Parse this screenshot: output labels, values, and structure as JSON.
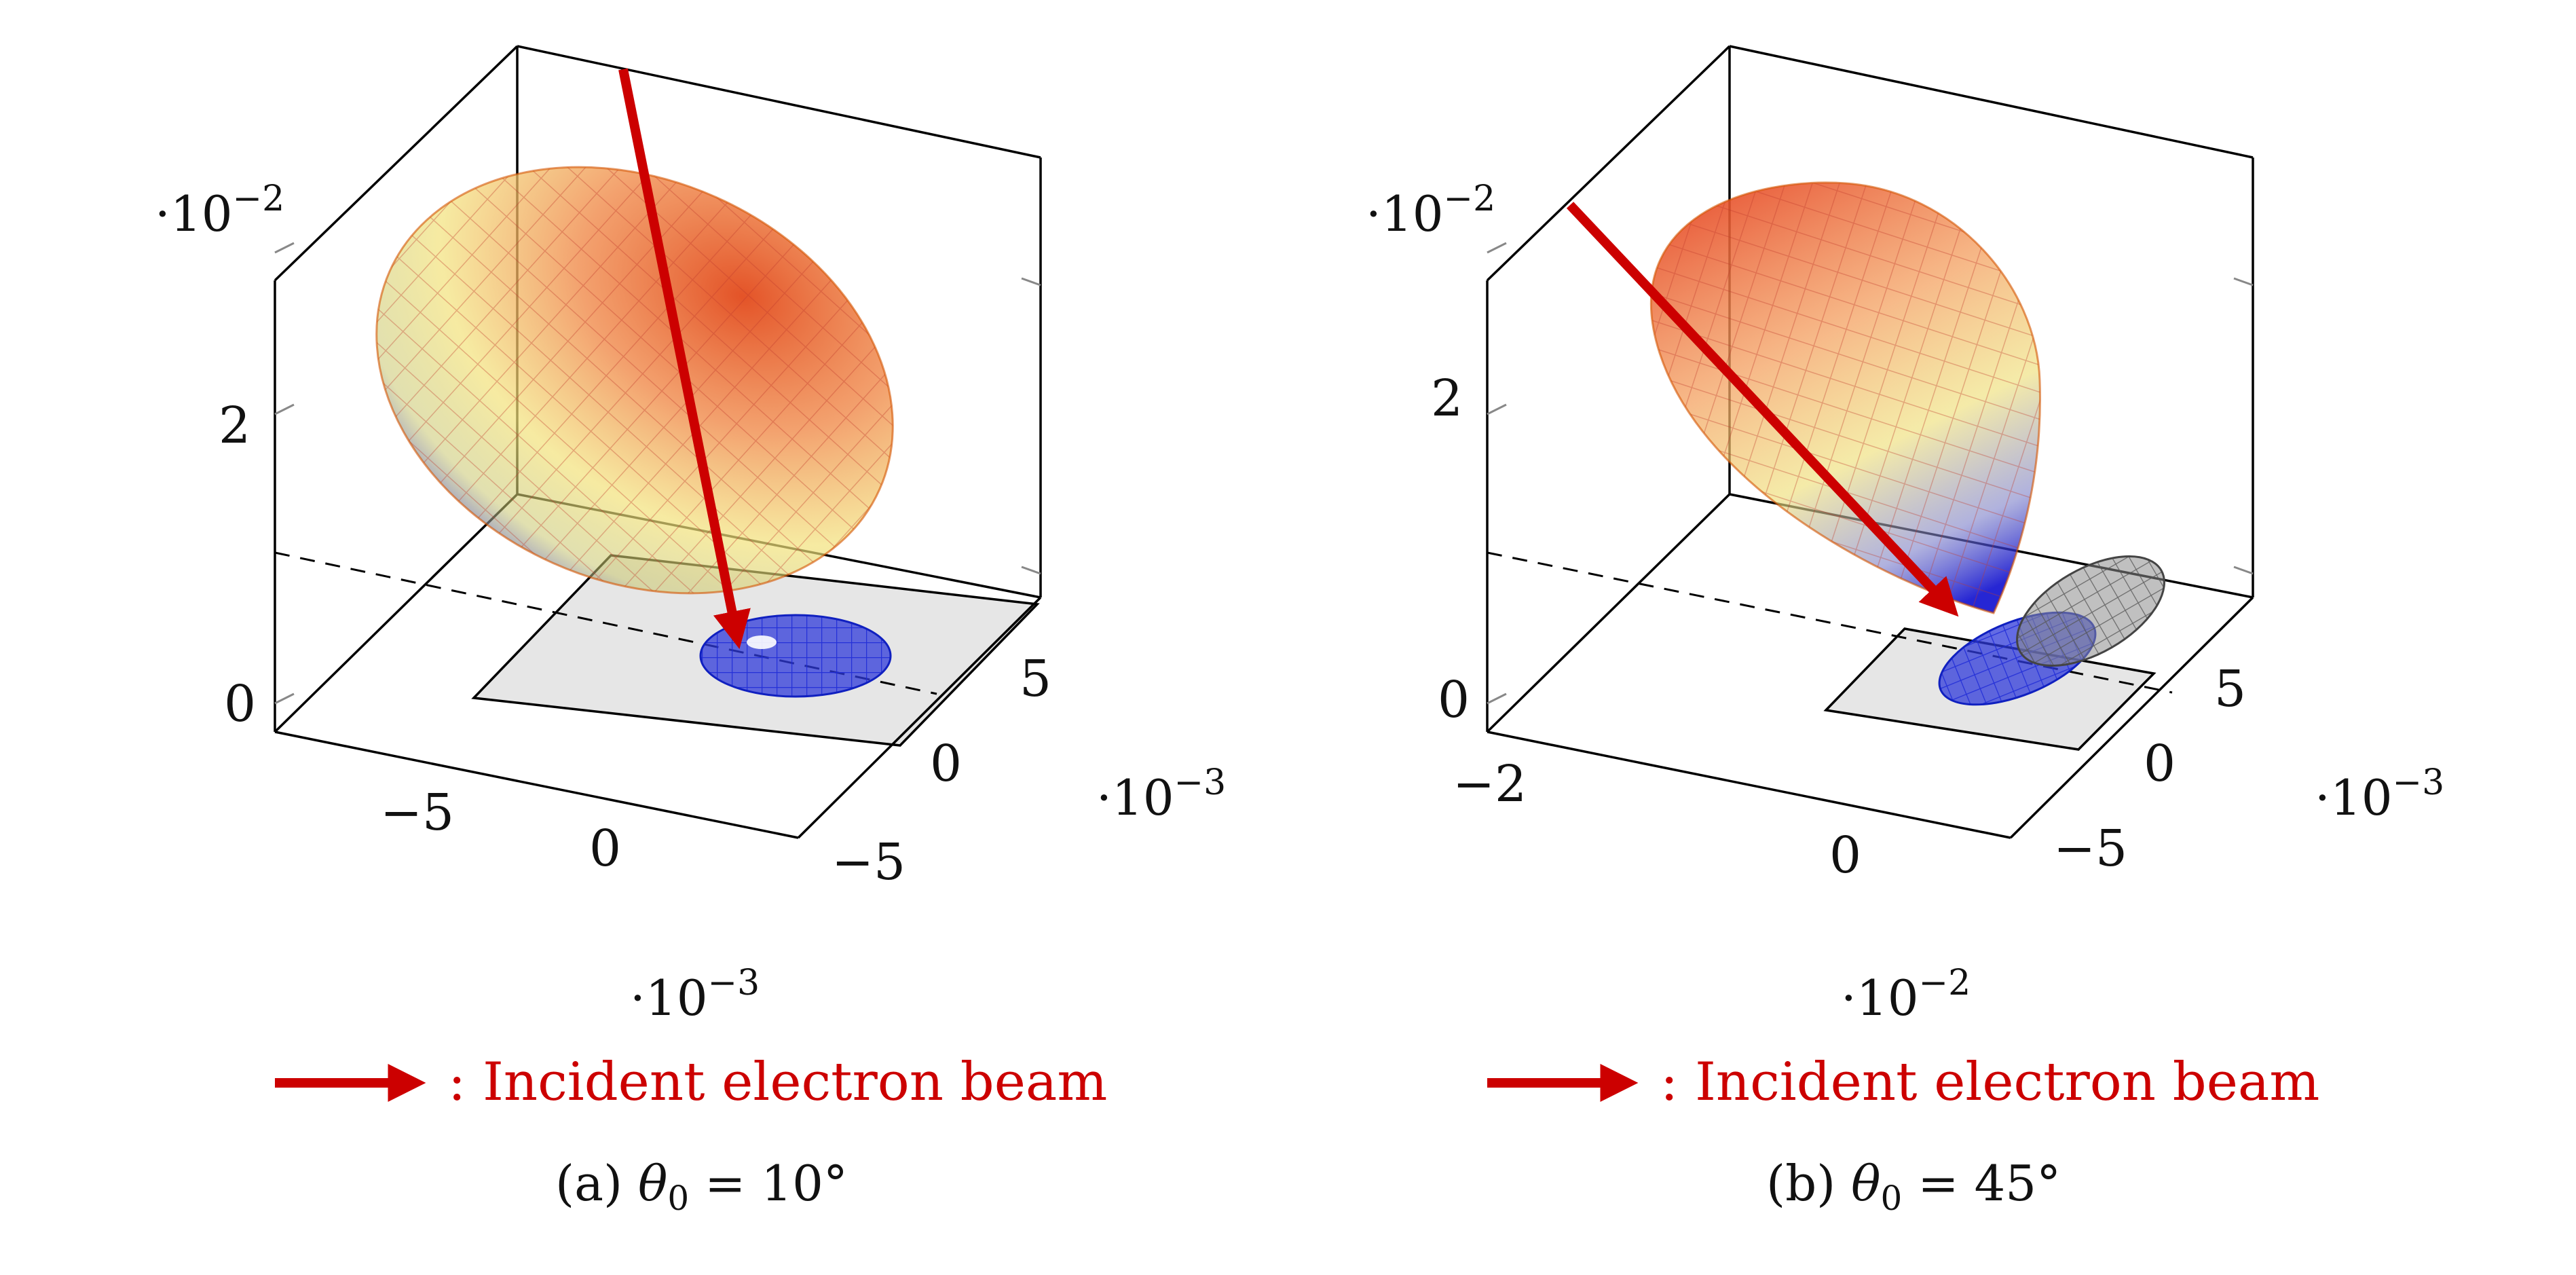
{
  "chart_data": [
    {
      "type": "3d-surface",
      "panel": "a",
      "caption": {
        "label": "(a)",
        "param": "θ",
        "sub": "0",
        "eq": "= 10°"
      },
      "legend": {
        "text": ": Incident electron beam",
        "color": "#cc0000"
      },
      "x_multiplier": {
        "base": "·10",
        "exp": "−3"
      },
      "y_multiplier": {
        "base": "·10",
        "exp": "−3"
      },
      "z_multiplier": {
        "base": "·10",
        "exp": "−2"
      },
      "x_ticks": [
        "−5",
        "0"
      ],
      "y_ticks": [
        "5",
        "0",
        "−5"
      ],
      "z_ticks": [
        "2",
        "0"
      ],
      "colormap": [
        "#0000cc",
        "#f0e68c",
        "#f4a261",
        "#e8552e"
      ]
    },
    {
      "type": "3d-surface",
      "panel": "b",
      "caption": {
        "label": "(b)",
        "param": "θ",
        "sub": "0",
        "eq": "= 45°"
      },
      "legend": {
        "text": ": Incident electron beam",
        "color": "#cc0000"
      },
      "x_multiplier": {
        "base": "·10",
        "exp": "−2"
      },
      "y_multiplier": {
        "base": "·10",
        "exp": "−3"
      },
      "z_multiplier": {
        "base": "·10",
        "exp": "−2"
      },
      "x_ticks": [
        "−2",
        "0"
      ],
      "y_ticks": [
        "5",
        "0",
        "−5"
      ],
      "z_ticks": [
        "2",
        "0"
      ],
      "colormap": [
        "#0000cc",
        "#f0e68c",
        "#f4a261",
        "#e8552e"
      ]
    }
  ]
}
